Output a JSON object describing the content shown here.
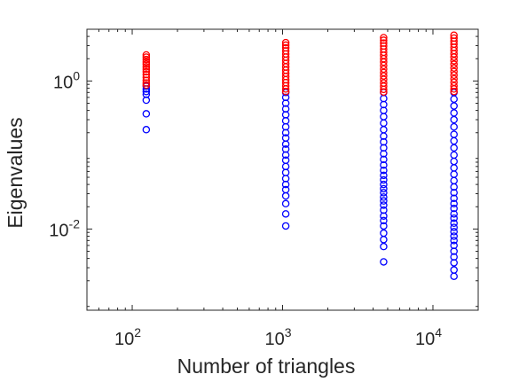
{
  "chart_data": {
    "type": "scatter",
    "title": "",
    "xlabel": "Number of triangles",
    "ylabel": "Eigenvalues",
    "xscale": "log",
    "yscale": "log",
    "xlim": [
      50,
      20000
    ],
    "ylim": [
      0.0008,
      5
    ],
    "grid": false,
    "box": true,
    "marker": "open-circle",
    "x_ticks": [
      {
        "value": 100,
        "base": "10",
        "exp": "2"
      },
      {
        "value": 1000,
        "base": "10",
        "exp": "3"
      },
      {
        "value": 10000,
        "base": "10",
        "exp": "4"
      }
    ],
    "y_ticks": [
      {
        "value": 0.01,
        "base": "10",
        "exp": "-2"
      },
      {
        "value": 1,
        "base": "10",
        "exp": "0"
      }
    ],
    "series": [
      {
        "color": "#ff0000",
        "groups": [
          {
            "x": 124,
            "values": [
              2.25,
              2.1,
              1.95,
              1.8,
              1.68,
              1.55,
              1.44,
              1.33,
              1.22,
              1.12,
              1.02,
              0.94,
              0.88
            ]
          },
          {
            "x": 1050,
            "values": [
              3.3,
              3.05,
              2.8,
              2.55,
              2.32,
              2.1,
              1.9,
              1.72,
              1.55,
              1.4,
              1.27,
              1.15,
              1.04,
              0.95,
              0.86,
              0.78,
              0.72
            ]
          },
          {
            "x": 4700,
            "values": [
              3.85,
              3.55,
              3.25,
              2.97,
              2.7,
              2.45,
              2.22,
              2.0,
              1.8,
              1.62,
              1.45,
              1.3,
              1.17,
              1.05,
              0.94,
              0.85,
              0.77,
              0.71
            ]
          },
          {
            "x": 13800,
            "values": [
              4.15,
              3.8,
              3.45,
              3.15,
              2.85,
              2.58,
              2.33,
              2.1,
              1.88,
              1.68,
              1.5,
              1.34,
              1.2,
              1.07,
              0.96,
              0.86,
              0.78,
              0.72
            ]
          }
        ]
      },
      {
        "color": "#0000ff",
        "groups": [
          {
            "x": 124,
            "values": [
              0.85,
              0.78,
              0.72,
              0.66,
              0.55,
              0.36,
              0.22
            ]
          },
          {
            "x": 1050,
            "values": [
              0.7,
              0.6,
              0.5,
              0.42,
              0.35,
              0.29,
              0.24,
              0.2,
              0.17,
              0.14,
              0.12,
              0.1,
              0.085,
              0.07,
              0.058,
              0.048,
              0.04,
              0.034,
              0.028,
              0.022,
              0.016,
              0.011
            ]
          },
          {
            "x": 4700,
            "values": [
              0.7,
              0.58,
              0.48,
              0.4,
              0.33,
              0.27,
              0.22,
              0.18,
              0.15,
              0.125,
              0.104,
              0.087,
              0.073,
              0.062,
              0.053,
              0.046,
              0.04,
              0.035,
              0.031,
              0.027,
              0.024,
              0.021,
              0.018,
              0.015,
              0.013,
              0.011,
              0.0088,
              0.0072,
              0.0058,
              0.0036
            ]
          },
          {
            "x": 13800,
            "values": [
              0.7,
              0.57,
              0.46,
              0.37,
              0.3,
              0.24,
              0.19,
              0.155,
              0.125,
              0.1,
              0.082,
              0.067,
              0.055,
              0.045,
              0.037,
              0.031,
              0.026,
              0.022,
              0.019,
              0.016,
              0.014,
              0.012,
              0.0105,
              0.0092,
              0.008,
              0.007,
              0.006,
              0.005,
              0.0042,
              0.0035,
              0.0028,
              0.0023
            ]
          }
        ]
      }
    ]
  }
}
